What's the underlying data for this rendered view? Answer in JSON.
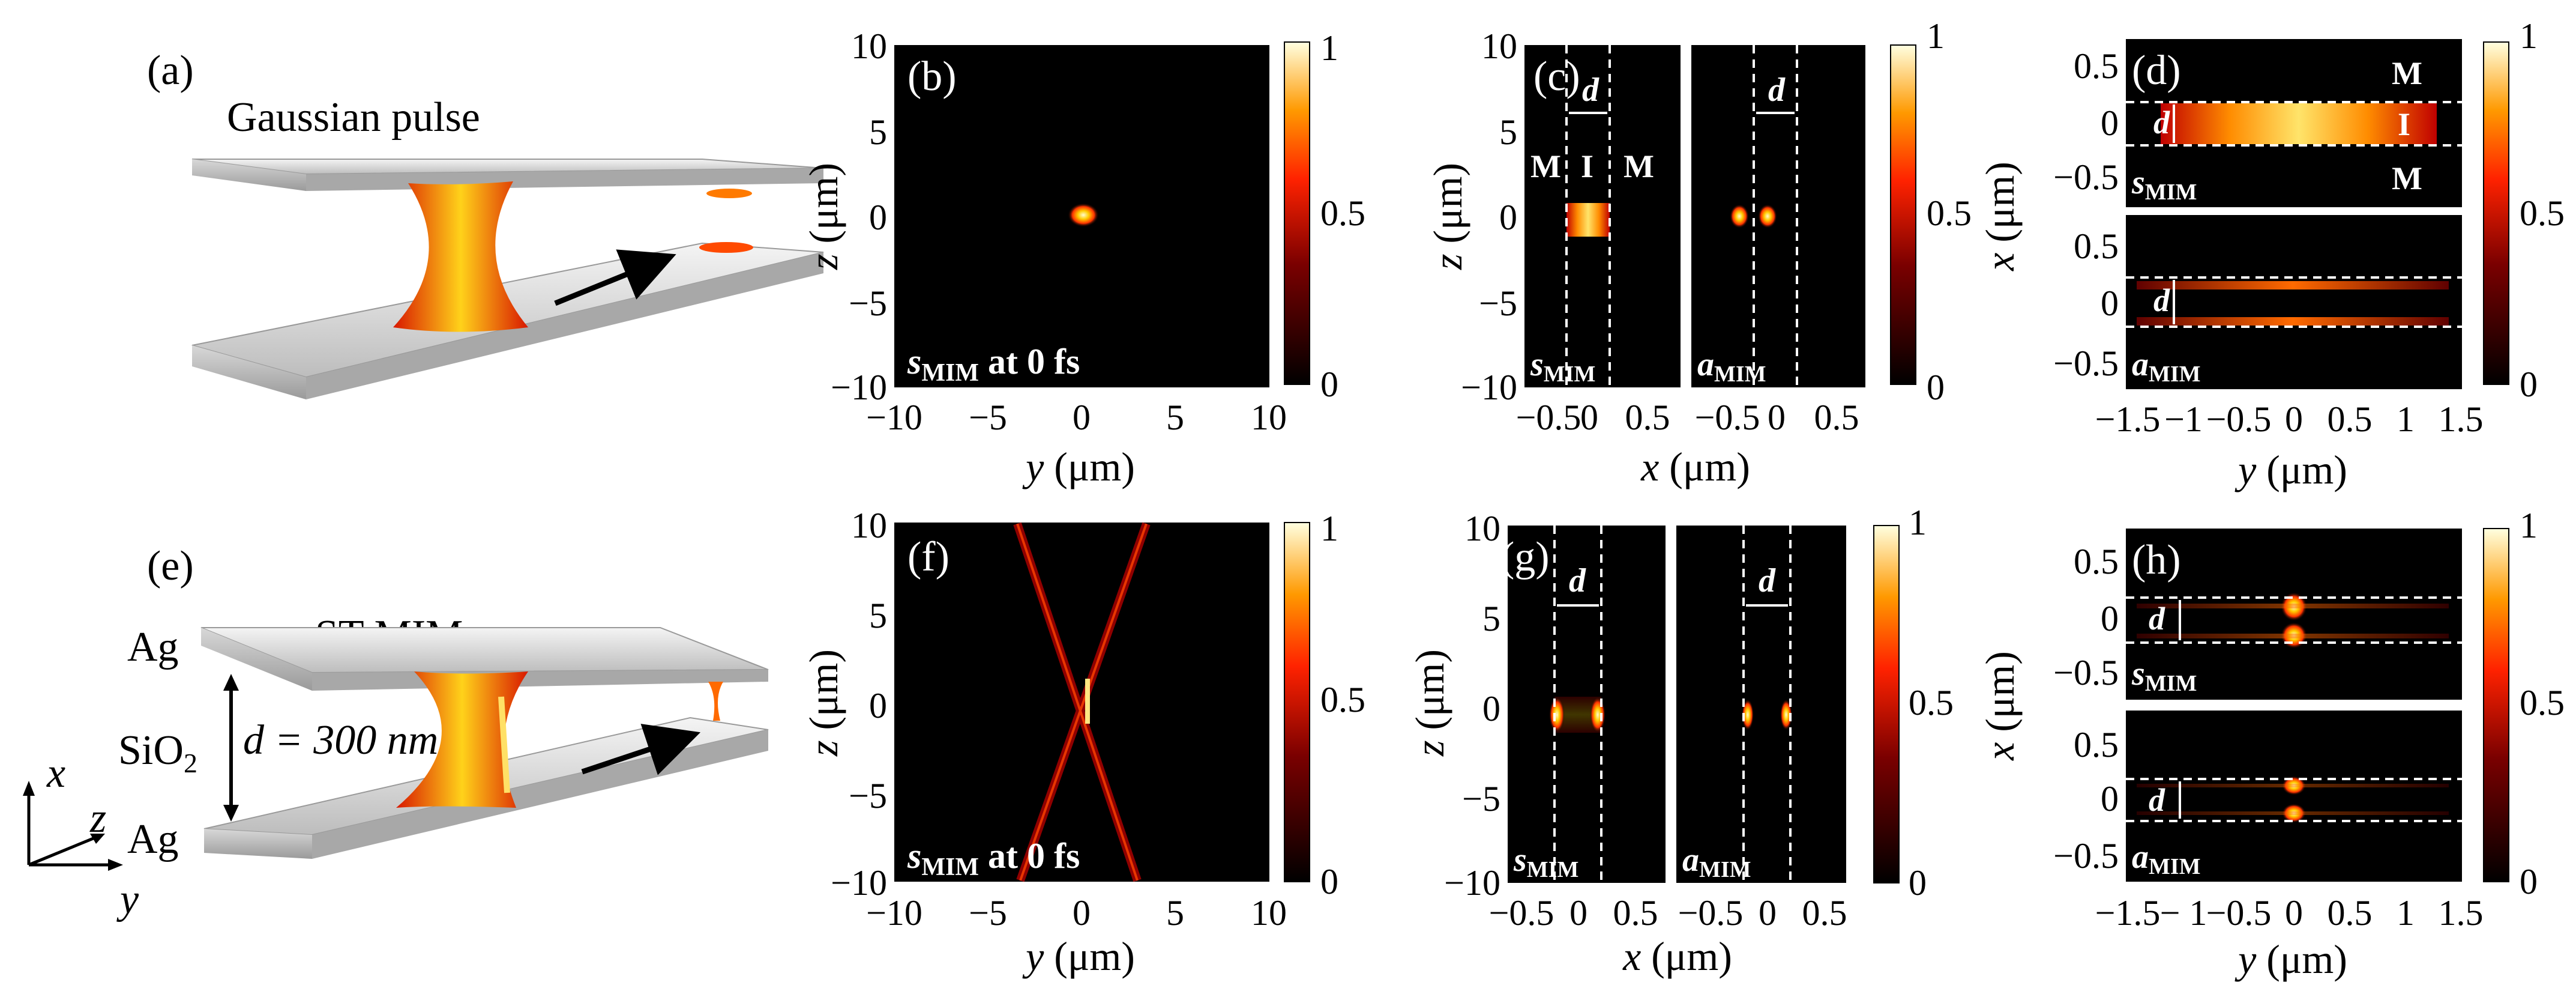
{
  "panels": {
    "a": {
      "label": "(a)",
      "title": "Gaussian pulse"
    },
    "b": {
      "label": "(b)",
      "caption_sym": "s",
      "caption_sub": "MIM",
      "caption_rest": " at 0 fs",
      "xlabel_var": "y",
      "xlabel_unit": " (μm)",
      "ylabel_var": "z",
      "ylabel_unit": " (μm)"
    },
    "c": {
      "label": "(c)",
      "left_caption": "s",
      "right_caption": "a",
      "sub": "MIM",
      "region_m": "M",
      "region_i": "I",
      "gap": "d",
      "xlabel_var": "x",
      "xlabel_unit": " (μm)",
      "ylabel_var": "z",
      "ylabel_unit": " (μm)"
    },
    "d": {
      "label": "(d)",
      "top_caption": "s",
      "bottom_caption": "a",
      "sub": "MIM",
      "region_m": "M",
      "region_i": "I",
      "gap": "d",
      "xlabel_var": "y",
      "xlabel_unit": " (μm)",
      "ylabel_var": "x",
      "ylabel_unit": " (μm)"
    },
    "e": {
      "label": "(e)",
      "title": "ST-MIM",
      "metal_top": "Ag",
      "metal_bottom": "Ag",
      "dielectric": "SiO",
      "dielectric_sub": "2",
      "gap_text": "d = 300 nm",
      "axis_x": "x",
      "axis_y": "y",
      "axis_z": "z"
    },
    "f": {
      "label": "(f)",
      "caption_sym": "s",
      "caption_sub": "MIM",
      "caption_rest": " at 0 fs",
      "xlabel_var": "y",
      "xlabel_unit": " (μm)",
      "ylabel_var": "z",
      "ylabel_unit": " (μm)"
    },
    "g": {
      "label": "(g)",
      "left_caption": "s",
      "right_caption": "a",
      "sub": "MIM",
      "gap": "d",
      "xlabel_var": "x",
      "xlabel_unit": " (μm)",
      "ylabel_var": "z",
      "ylabel_unit": " (μm)"
    },
    "h": {
      "label": "(h)",
      "top_caption": "s",
      "bottom_caption": "a",
      "sub": "MIM",
      "gap": "d",
      "xlabel_var": "y",
      "xlabel_unit": " (μm)",
      "ylabel_var": "x",
      "ylabel_unit": " (μm)"
    }
  },
  "ticks": {
    "yz_y": [
      "−10",
      "−5",
      "0",
      "5",
      "10"
    ],
    "yz_z": [
      "10",
      "5",
      "0",
      "−5",
      "−10"
    ],
    "c_x": [
      "−0.5",
      "0",
      "0.5"
    ],
    "g_x": [
      "−0.5",
      "0",
      "0.5",
      "−0.5",
      "0",
      "0.5"
    ],
    "d_x": [
      "0.5",
      "0",
      "−0.5"
    ],
    "d_y": [
      "−1.5",
      "−1",
      "−0.5",
      "0",
      "0.5",
      "1",
      "1.5"
    ],
    "h_y": [
      "−1.5",
      "− 1",
      "−0.5",
      "0",
      "0.5",
      "1",
      "1.5"
    ],
    "cbar": [
      "1",
      "0.5",
      "0"
    ]
  },
  "chart_data": [
    {
      "type": "heatmap",
      "panel": "b",
      "field": "s_MIM at 0 fs",
      "xlabel": "y (μm)",
      "ylabel": "z (μm)",
      "xlim": [
        -10,
        10
      ],
      "ylim": [
        -10,
        10
      ],
      "colorbar": [
        0,
        1
      ],
      "features": [
        {
          "kind": "spot",
          "y": 0,
          "z": 1,
          "peak": 1
        }
      ]
    },
    {
      "type": "heatmap",
      "panel": "c",
      "field": "s_MIM / a_MIM",
      "xlabel": "x (μm)",
      "ylabel": "z (μm)",
      "xlim": [
        -0.7,
        0.7
      ],
      "ylim": [
        -10,
        10
      ],
      "colorbar": [
        0,
        1
      ],
      "gap_bounds_um": [
        -0.15,
        0.15
      ]
    },
    {
      "type": "heatmap",
      "panel": "d",
      "field": "s_MIM / a_MIM",
      "xlabel": "y (μm)",
      "ylabel": "x (μm)",
      "xlim": [
        -1.5,
        1.5
      ],
      "ylim": [
        -0.7,
        0.7
      ],
      "colorbar": [
        0,
        1
      ],
      "gap_bounds_um": [
        -0.15,
        0.15
      ]
    },
    {
      "type": "heatmap",
      "panel": "f",
      "field": "s_MIM at 0 fs",
      "xlabel": "y (μm)",
      "ylabel": "z (μm)",
      "xlim": [
        -10,
        10
      ],
      "ylim": [
        -10,
        10
      ],
      "colorbar": [
        0,
        1
      ],
      "features": [
        {
          "kind": "X-shaped beam",
          "focus_z": 0
        }
      ]
    },
    {
      "type": "heatmap",
      "panel": "g",
      "field": "s_MIM / a_MIM",
      "xlabel": "x (μm)",
      "ylabel": "z (μm)",
      "xlim": [
        -0.7,
        0.7
      ],
      "ylim": [
        -10,
        10
      ],
      "colorbar": [
        0,
        1
      ],
      "gap_bounds_um": [
        -0.15,
        0.15
      ]
    },
    {
      "type": "heatmap",
      "panel": "h",
      "field": "s_MIM / a_MIM",
      "xlabel": "y (μm)",
      "ylabel": "x (μm)",
      "xlim": [
        -1.5,
        1.5
      ],
      "ylim": [
        -0.7,
        0.7
      ],
      "colorbar": [
        0,
        1
      ],
      "gap_bounds_um": [
        -0.15,
        0.15
      ]
    }
  ]
}
